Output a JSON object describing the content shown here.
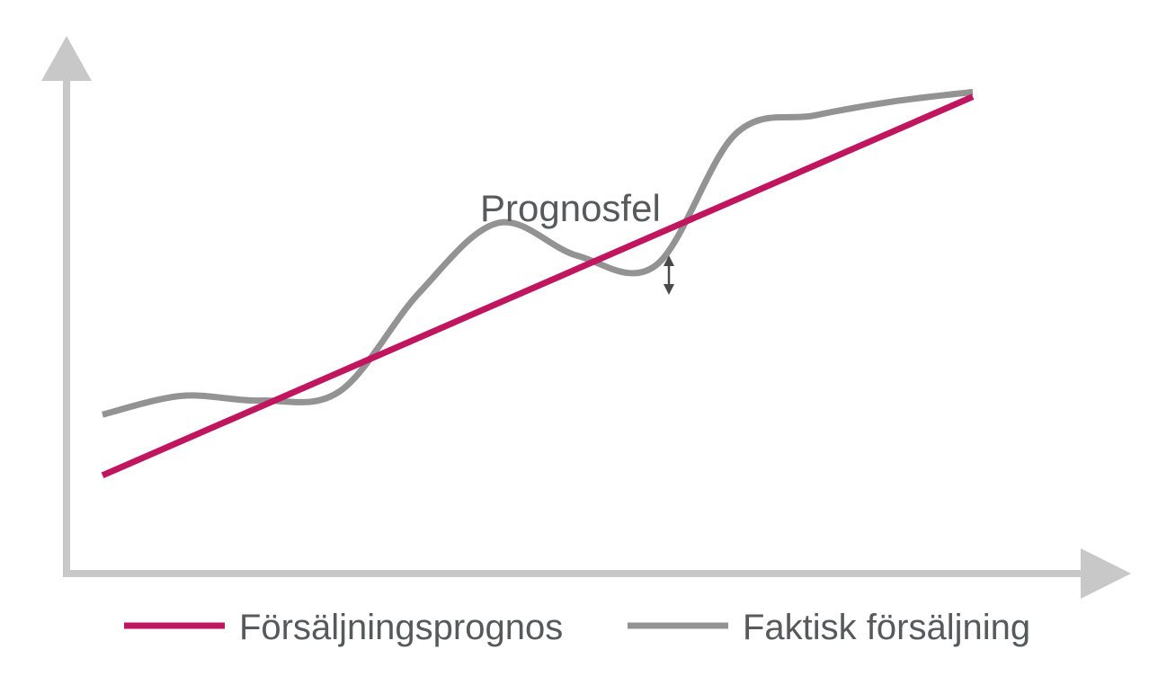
{
  "chart_data": {
    "type": "line",
    "x": [
      0,
      1,
      2,
      3,
      4,
      5,
      6,
      7,
      8,
      9,
      10,
      11
    ],
    "series": [
      {
        "name": "Försäljningsprognos",
        "color": "#c0155f",
        "values": [
          2.1,
          2.6,
          3.3,
          4.1,
          4.8,
          5.6,
          6.4,
          7.1,
          7.9,
          8.7,
          9.4,
          10.2
        ]
      },
      {
        "name": "Faktisk försäljning",
        "color": "#939393",
        "values": [
          3.4,
          3.8,
          3.7,
          3.9,
          6.0,
          7.5,
          6.8,
          6.6,
          9.4,
          9.8,
          10.1,
          10.3
        ]
      }
    ],
    "annotation": {
      "label": "Prognosfel",
      "icon": "double-arrow-vertical"
    },
    "axis_color": "#c8c8c8",
    "grid": false,
    "legend": "bottom",
    "xlim": [
      0,
      11
    ],
    "ylim": [
      0,
      11.5
    ]
  }
}
